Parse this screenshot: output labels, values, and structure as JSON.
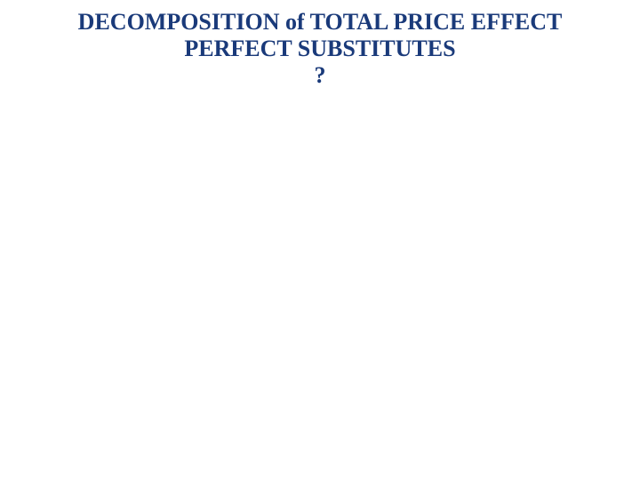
{
  "slide": {
    "title_line1": "DECOMPOSITION of TOTAL PRICE EFFECT",
    "title_line2": "PERFECT SUBSTITUTES",
    "title_line3": "?",
    "title_color": "#1a3a7a",
    "title_fontsize": 26,
    "background_color": "#ffffff"
  }
}
